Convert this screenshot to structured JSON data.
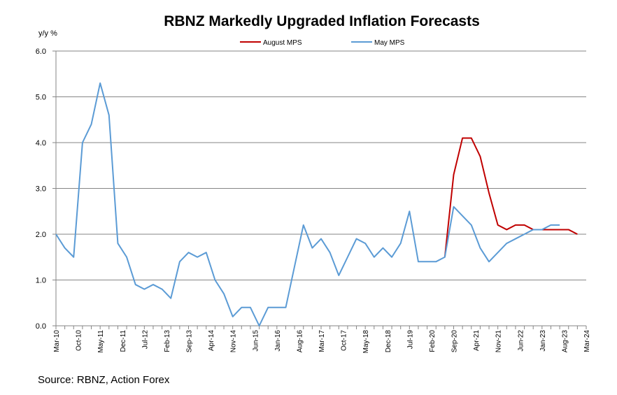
{
  "chart_data": {
    "type": "line",
    "title": "RBNZ Markedly Upgraded Inflation Forecasts",
    "ylabel": "y/y %",
    "xlabel": "",
    "ylim": [
      0,
      6
    ],
    "yticks": [
      "0.0",
      "1.0",
      "2.0",
      "3.0",
      "4.0",
      "5.0",
      "6.0"
    ],
    "grid": true,
    "legend_position": "top-center",
    "x_tick_labels": [
      "Mar-10",
      "Oct-10",
      "May-11",
      "Dec-11",
      "Jul-12",
      "Feb-13",
      "Sep-13",
      "Apr-14",
      "Nov-14",
      "Jun-15",
      "Jan-16",
      "Aug-16",
      "Mar-17",
      "Oct-17",
      "May-18",
      "Dec-18",
      "Jul-19",
      "Feb-20",
      "Sep-20",
      "Apr-21",
      "Nov-21",
      "Jun-22",
      "Jan-23",
      "Aug-23",
      "Mar-24"
    ],
    "x_start": "Mar-10",
    "period": "quarterly",
    "series": [
      {
        "name": "August MPS",
        "color": "#c00000",
        "start_index": 44,
        "values": [
          1.5,
          3.3,
          4.1,
          4.1,
          3.7,
          2.9,
          2.2,
          2.1,
          2.2,
          2.2,
          2.1,
          2.1,
          2.1,
          2.1,
          2.1,
          2.0
        ]
      },
      {
        "name": "May MPS",
        "color": "#5b9bd5",
        "start_index": 0,
        "values": [
          2.0,
          1.7,
          1.5,
          4.0,
          4.4,
          5.3,
          4.6,
          1.8,
          1.5,
          0.9,
          0.8,
          0.9,
          0.8,
          0.6,
          1.4,
          1.6,
          1.5,
          1.6,
          1.0,
          0.7,
          0.2,
          0.4,
          0.4,
          0.0,
          0.4,
          0.4,
          0.4,
          1.3,
          2.2,
          1.7,
          1.9,
          1.6,
          1.1,
          1.5,
          1.9,
          1.8,
          1.5,
          1.7,
          1.5,
          1.8,
          2.5,
          1.4,
          1.4,
          1.4,
          1.5,
          2.6,
          2.4,
          2.2,
          1.7,
          1.4,
          1.6,
          1.8,
          1.9,
          2.0,
          2.1,
          2.1,
          2.2,
          2.2
        ]
      }
    ]
  },
  "source_text": "Source: RBNZ,  Action Forex"
}
